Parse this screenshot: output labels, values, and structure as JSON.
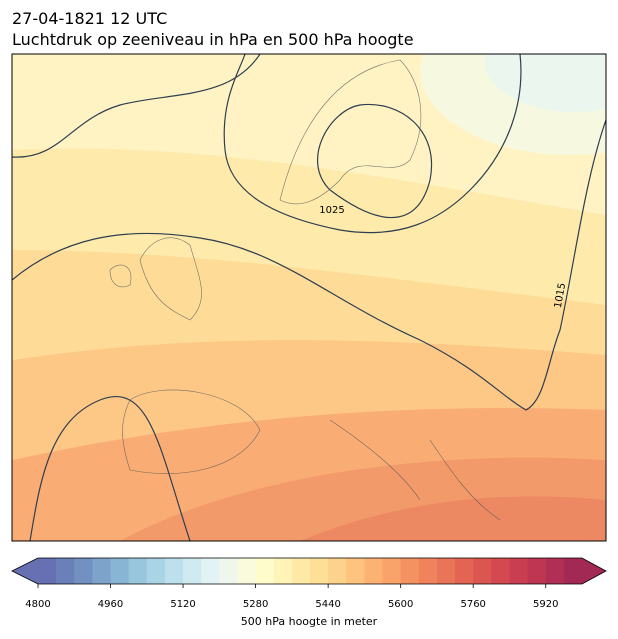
{
  "header": {
    "title": "27-04-1821 12 UTC",
    "subtitle": "Luchtdruk op zeeniveau in hPa en 500 hPa hoogte"
  },
  "map": {
    "isobar_labels": [
      "1025",
      "1015"
    ]
  },
  "colorbar": {
    "label": "500 hPa hoogte in meter",
    "range": [
      4800,
      6000
    ],
    "ticks": [
      4800,
      4960,
      5120,
      5280,
      5440,
      5600,
      5760,
      5920
    ],
    "colors": [
      "#6670b2",
      "#6a80b9",
      "#7291c2",
      "#7da3cb",
      "#89b5d4",
      "#98c6dd",
      "#a9d4e5",
      "#bde0ec",
      "#d0eaf2",
      "#e3f2f4",
      "#eff7ec",
      "#f8fbdc",
      "#fffccc",
      "#fff4b8",
      "#feeaa6",
      "#fedf98",
      "#fdd28c",
      "#fdc37f",
      "#fcb273",
      "#f9a26a",
      "#f59262",
      "#f0835c",
      "#ea7457",
      "#e36453",
      "#db5650",
      "#d3494f",
      "#c93e50",
      "#bf3653",
      "#b12f55",
      "#a32955"
    ]
  }
}
